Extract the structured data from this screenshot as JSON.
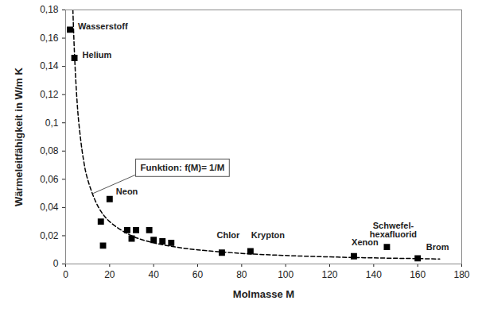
{
  "chart_data": {
    "type": "scatter",
    "x_label": "Molmasse M",
    "y_label": "Wärmeleitfähigkeit in W/m K",
    "xlim": [
      0,
      180
    ],
    "xticks": [
      0,
      20,
      40,
      60,
      80,
      100,
      120,
      140,
      160,
      180
    ],
    "ylim": [
      0,
      0.18
    ],
    "yticks": [
      0,
      {
        "value": 0.02,
        "label": "0,02"
      },
      {
        "value": 0.04,
        "label": "0,04"
      },
      {
        "value": 0.06,
        "label": "0,06"
      },
      {
        "value": 0.08,
        "label": "0,08"
      },
      {
        "value": 0.1,
        "label": "0,1"
      },
      {
        "value": 0.12,
        "label": "0,12"
      },
      {
        "value": 0.14,
        "label": "0,14"
      },
      {
        "value": 0.16,
        "label": "0,16"
      },
      {
        "value": 0.18,
        "label": "0,18"
      }
    ],
    "grid": false,
    "series": [
      {
        "type": "scatter",
        "marker": "square",
        "color": "#000000",
        "x": [
          2,
          4,
          16,
          17,
          20,
          28,
          30,
          32,
          38,
          40,
          44,
          48,
          71,
          84,
          131,
          146,
          160
        ],
        "values": [
          0.166,
          0.146,
          0.03,
          0.013,
          0.046,
          0.024,
          0.018,
          0.024,
          0.024,
          0.017,
          0.016,
          0.015,
          0.008,
          0.009,
          0.0055,
          0.012,
          0.004
        ],
        "labels": [
          "Wasserstoff",
          "Helium",
          null,
          null,
          "Neon",
          null,
          null,
          null,
          null,
          null,
          null,
          null,
          "Chlor",
          "Krypton",
          "Xenon",
          "Schwefel-\nhexafluorid",
          "Brom"
        ]
      },
      {
        "type": "line",
        "line_style": "dashed",
        "color": "#000000",
        "x": [
          3.3,
          4,
          5,
          6,
          8,
          10,
          15,
          20,
          30,
          40,
          50,
          60,
          80,
          100,
          120,
          140,
          160,
          170
        ],
        "values": [
          0.18,
          0.15,
          0.12,
          0.1,
          0.075,
          0.06,
          0.04,
          0.03,
          0.02,
          0.015,
          0.012,
          0.01,
          0.0075,
          0.006,
          0.005,
          0.0043,
          0.0038,
          0.0035
        ]
      }
    ],
    "annotations": [
      {
        "text": "Funktion: f(M)= 1/M"
      }
    ]
  }
}
